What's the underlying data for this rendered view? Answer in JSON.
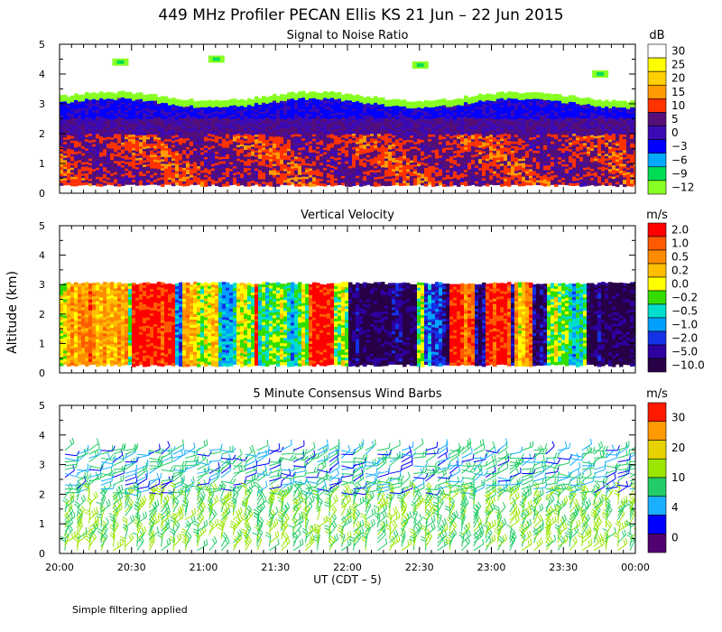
{
  "title": "449 MHz Profiler PECAN Ellis KS 21 Jun – 22 Jun 2015",
  "shared_ylabel": "Altitude (km)",
  "xlabel": "UT  (CDT – 5)",
  "footnote": "Simple filtering applied",
  "x_ticks": [
    "20:00",
    "20:30",
    "21:00",
    "21:30",
    "22:00",
    "22:30",
    "23:00",
    "23:30",
    "00:00"
  ],
  "y_ticks": [
    "0",
    "1",
    "2",
    "3",
    "4",
    "5"
  ],
  "chart_data": [
    {
      "type": "heatmap",
      "title": "Signal to Noise Ratio",
      "ylabel": "Altitude (km)",
      "units": "dB",
      "x_range": [
        "20:00",
        "00:00"
      ],
      "ylim": [
        0,
        5
      ],
      "colorbar": {
        "labels": [
          "30",
          "25",
          "20",
          "15",
          "10",
          "5",
          "0",
          "−3",
          "−6",
          "−9",
          "−12"
        ],
        "colors": [
          "#ffffff",
          "#ffff00",
          "#ffd000",
          "#ff9b00",
          "#ff3200",
          "#550f78",
          "#3c0ab4",
          "#0000ff",
          "#00aaff",
          "#00dd55",
          "#88ff22"
        ]
      },
      "data_extent": {
        "top_km": 3.0,
        "bottom_km": 0.3
      },
      "layers": [
        {
          "altitude_km": [
            2.9,
            3.2
          ],
          "description": "green/yellow-green rim",
          "value_db": -10
        },
        {
          "altitude_km": [
            2.5,
            2.9
          ],
          "value_db": -2
        },
        {
          "altitude_km": [
            2.0,
            2.5
          ],
          "value_db": 3
        },
        {
          "altitude_km": [
            0.3,
            2.0
          ],
          "value_db": 10
        }
      ],
      "isolated_echoes": [
        {
          "time": "20:25",
          "altitude_km": 4.4
        },
        {
          "time": "21:05",
          "altitude_km": 4.5
        },
        {
          "time": "22:30",
          "altitude_km": 4.3
        },
        {
          "time": "23:45",
          "altitude_km": 4.0
        }
      ]
    },
    {
      "type": "heatmap",
      "title": "Vertical Velocity",
      "ylabel": "Altitude (km)",
      "units": "m/s",
      "x_range": [
        "20:00",
        "00:00"
      ],
      "ylim": [
        0,
        5
      ],
      "colorbar": {
        "labels": [
          "2.0",
          "1.0",
          "0.5",
          "0.2",
          "0.0",
          "−0.2",
          "−0.5",
          "−1.0",
          "−2.0",
          "−5.0",
          "−10.0"
        ],
        "colors": [
          "#ff0000",
          "#ff5a00",
          "#ff8c00",
          "#ffbe00",
          "#ffff00",
          "#33dd00",
          "#00ddcc",
          "#00a0ff",
          "#1432e6",
          "#2d00a0",
          "#280046"
        ]
      },
      "data_extent": {
        "top_km": 3.1,
        "bottom_km": 0.3
      }
    },
    {
      "type": "scatter",
      "subtype": "wind barbs",
      "title": "5 Minute Consensus Wind Barbs",
      "ylabel": "Altitude (km)",
      "units": "m/s",
      "x_range": [
        "20:00",
        "00:00"
      ],
      "ylim": [
        0,
        5
      ],
      "colorbar": {
        "labels": [
          "30",
          "20",
          "10",
          "4",
          "0"
        ],
        "colors": [
          "#ff1a00",
          "#ff9a00",
          "#e6d200",
          "#9ae600",
          "#22cc66",
          "#1ab0ff",
          "#0000ff",
          "#500070"
        ]
      },
      "data_extent": {
        "top_km": 3.5,
        "bottom_km": 0.1
      },
      "typical_speed_ms": {
        "below_2km": 10,
        "2_to_3.5km": 6
      }
    }
  ]
}
